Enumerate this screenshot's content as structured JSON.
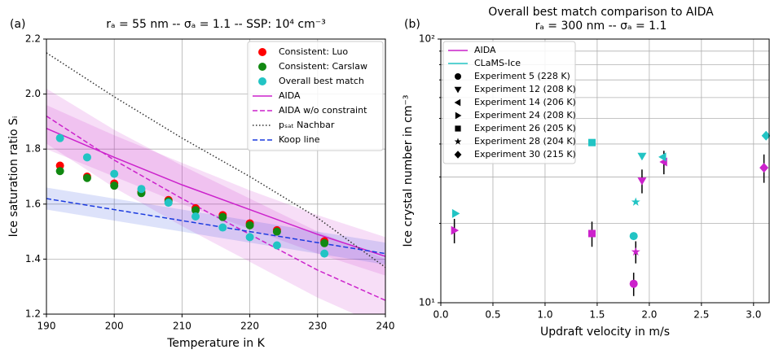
{
  "chart_data": [
    {
      "type": "line",
      "panel_label": "(a)",
      "title": "rₐ = 55 nm -- σₐ = 1.1 -- SSP: 10⁴ cm⁻³",
      "xlabel": "Temperature in K",
      "ylabel": "Ice saturation ratio Sᵢ",
      "xlim": [
        190,
        240
      ],
      "xticks": [
        190,
        200,
        210,
        220,
        230,
        240
      ],
      "ylim": [
        1.2,
        2.2
      ],
      "yticks": [
        1.2,
        1.4,
        1.6,
        1.8,
        {
          "value": 2,
          "label": "2.0"
        },
        2.2
      ],
      "grid": true,
      "legend": "upper right",
      "series": [
        {
          "name": "Consistent: Luo",
          "color": "#ff0000",
          "style": "marker",
          "x": [
            192,
            196,
            200,
            204,
            208,
            212,
            216,
            220,
            224,
            231
          ],
          "values": [
            1.74,
            1.7,
            1.675,
            1.645,
            1.615,
            1.585,
            1.56,
            1.53,
            1.505,
            1.465
          ]
        },
        {
          "name": "Consistent: Carslaw",
          "color": "#118811",
          "style": "marker",
          "x": [
            192,
            196,
            200,
            204,
            208,
            212,
            216,
            220,
            224,
            231
          ],
          "values": [
            1.72,
            1.695,
            1.667,
            1.64,
            1.61,
            1.578,
            1.553,
            1.523,
            1.5,
            1.458
          ]
        },
        {
          "name": "Overall best match",
          "color": "#22c4c4",
          "style": "marker",
          "x": [
            192,
            196,
            200,
            204,
            208,
            212,
            216,
            220,
            224,
            231
          ],
          "values": [
            1.84,
            1.77,
            1.71,
            1.655,
            1.605,
            1.555,
            1.515,
            1.48,
            1.45,
            1.42
          ]
        },
        {
          "name": "AIDA",
          "color": "#cc22cc",
          "style": "solid",
          "x": [
            190,
            200,
            210,
            220,
            230,
            240
          ],
          "values": [
            1.875,
            1.77,
            1.67,
            1.58,
            1.49,
            1.41
          ],
          "lower": [
            1.8,
            1.7,
            1.6,
            1.51,
            1.42,
            1.34
          ],
          "upper": [
            1.96,
            1.85,
            1.75,
            1.65,
            1.56,
            1.48
          ]
        },
        {
          "name": "AIDA w/o constraint",
          "color": "#cc22cc",
          "style": "dashed",
          "x": [
            190,
            200,
            210,
            220,
            230,
            240
          ],
          "values": [
            1.92,
            1.76,
            1.62,
            1.49,
            1.36,
            1.25
          ],
          "lower": [
            1.82,
            1.66,
            1.52,
            1.39,
            1.26,
            1.15
          ],
          "upper": [
            2.02,
            1.87,
            1.74,
            1.62,
            1.5,
            1.4
          ]
        },
        {
          "name": "pₛₐₜ Nachbar",
          "color": "#333333",
          "style": "dotted",
          "x": [
            190,
            200,
            210,
            220,
            230,
            240
          ],
          "values": [
            2.15,
            1.99,
            1.84,
            1.7,
            1.55,
            1.37
          ]
        },
        {
          "name": "Koop line",
          "color": "#1a3adf",
          "style": "dashed",
          "x": [
            190,
            200,
            210,
            220,
            230,
            240
          ],
          "values": [
            1.62,
            1.58,
            1.54,
            1.5,
            1.46,
            1.42
          ],
          "lower": [
            1.58,
            1.54,
            1.5,
            1.46,
            1.42,
            1.38
          ],
          "upper": [
            1.66,
            1.62,
            1.58,
            1.54,
            1.5,
            1.46
          ]
        }
      ]
    },
    {
      "type": "scatter",
      "panel_label": "(b)",
      "title": "Overall best match comparison to AIDA",
      "subtitle": "rₐ = 300 nm -- σₐ = 1.1",
      "xlabel": "Updraft velocity in m/s",
      "ylabel": "Ice crystal number in cm⁻³",
      "xlim": [
        0,
        3.15
      ],
      "xticks": [
        {
          "value": 0,
          "label": "0.0"
        },
        0.5,
        {
          "value": 1,
          "label": "1.0"
        },
        1.5,
        {
          "value": 2,
          "label": "2.0"
        },
        2.5,
        {
          "value": 3,
          "label": "3.0"
        }
      ],
      "ylim": [
        10,
        100
      ],
      "log_y": true,
      "yticks": [
        {
          "value": 10,
          "label": "10¹"
        },
        {
          "value": 100,
          "label": "10²"
        }
      ],
      "yminorticks": [
        20,
        30,
        40,
        50,
        60,
        70,
        80,
        90
      ],
      "grid": true,
      "legend": "upper left",
      "aida": {
        "name": "AIDA",
        "color": "#cc22cc"
      },
      "clams": {
        "name": "CLaMS-Ice",
        "color": "#22c4c4"
      },
      "experiments": [
        {
          "name": "Experiment 5 (228 K)",
          "marker": "circle",
          "aida_x": 1.85,
          "aida": 11.8,
          "aida_err": 1.2,
          "clams_x": 1.85,
          "clams": 17.9
        },
        {
          "name": "Experiment 12 (208 K)",
          "marker": "triangle-down",
          "aida_x": 1.93,
          "aida": 29,
          "aida_err": 3,
          "clams_x": 1.93,
          "clams": 36
        },
        {
          "name": "Experiment 14 (206 K)",
          "marker": "triangle-left",
          "aida_x": 2.14,
          "aida": 34.2,
          "aida_err": 3.5,
          "clams_x": 2.13,
          "clams": 35.7
        },
        {
          "name": "Experiment 24 (208 K)",
          "marker": "triangle-right",
          "aida_x": 0.13,
          "aida": 18.8,
          "aida_err": 2,
          "clams_x": 0.14,
          "clams": 21.8
        },
        {
          "name": "Experiment 26 (205 K)",
          "marker": "square",
          "aida_x": 1.45,
          "aida": 18.3,
          "aida_err": 2,
          "clams_x": 1.45,
          "clams": 40.5
        },
        {
          "name": "Experiment 28 (204 K)",
          "marker": "star",
          "aida_x": 1.87,
          "aida": 15.6,
          "aida_err": 1.5,
          "clams_x": 1.87,
          "clams": 24.1
        },
        {
          "name": "Experiment 30 (215 K)",
          "marker": "diamond",
          "aida_x": 3.1,
          "aida": 32.5,
          "aida_err": 4,
          "clams_x": 3.12,
          "clams": 43
        }
      ]
    }
  ]
}
